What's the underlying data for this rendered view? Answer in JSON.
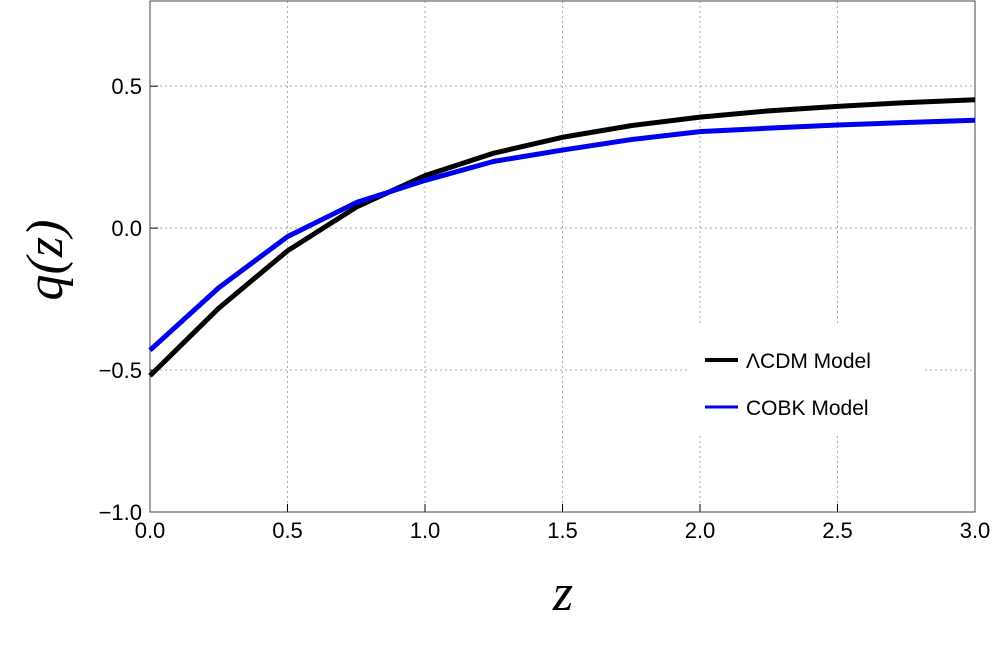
{
  "chart_data": {
    "type": "line",
    "x_label": "z",
    "y_label": "q(z)",
    "x": [
      0,
      0.25,
      0.5,
      0.75,
      1,
      1.25,
      1.5,
      1.75,
      2,
      2.25,
      2.5,
      2.75,
      3
    ],
    "series": [
      {
        "name": "ΛCDM Model",
        "color": "#000000",
        "values": [
          -0.52,
          -0.282,
          -0.08,
          0.074,
          0.185,
          0.264,
          0.32,
          0.361,
          0.391,
          0.413,
          0.429,
          0.442,
          0.452
        ]
      },
      {
        "name": "COBK Model",
        "color": "#0000ee",
        "values": [
          -0.43,
          -0.21,
          -0.03,
          0.09,
          0.168,
          0.235,
          0.275,
          0.312,
          0.34,
          0.352,
          0.363,
          0.372,
          0.38
        ]
      }
    ],
    "xlim": [
      0,
      3
    ],
    "ylim": [
      -1,
      0.8
    ],
    "xticks": [
      {
        "value": 0,
        "label": "0.0"
      },
      0.5,
      {
        "value": 1,
        "label": "1.0"
      },
      1.5,
      {
        "value": 2,
        "label": "2.0"
      },
      2.5,
      {
        "value": 3,
        "label": "3.0"
      }
    ],
    "yticks": [
      {
        "value": -1,
        "label": "−1.0"
      },
      {
        "value": -0.5,
        "label": "−0.5"
      },
      {
        "value": 0,
        "label": "0.0"
      },
      0.5
    ],
    "grid": true,
    "legend": "lower right"
  }
}
